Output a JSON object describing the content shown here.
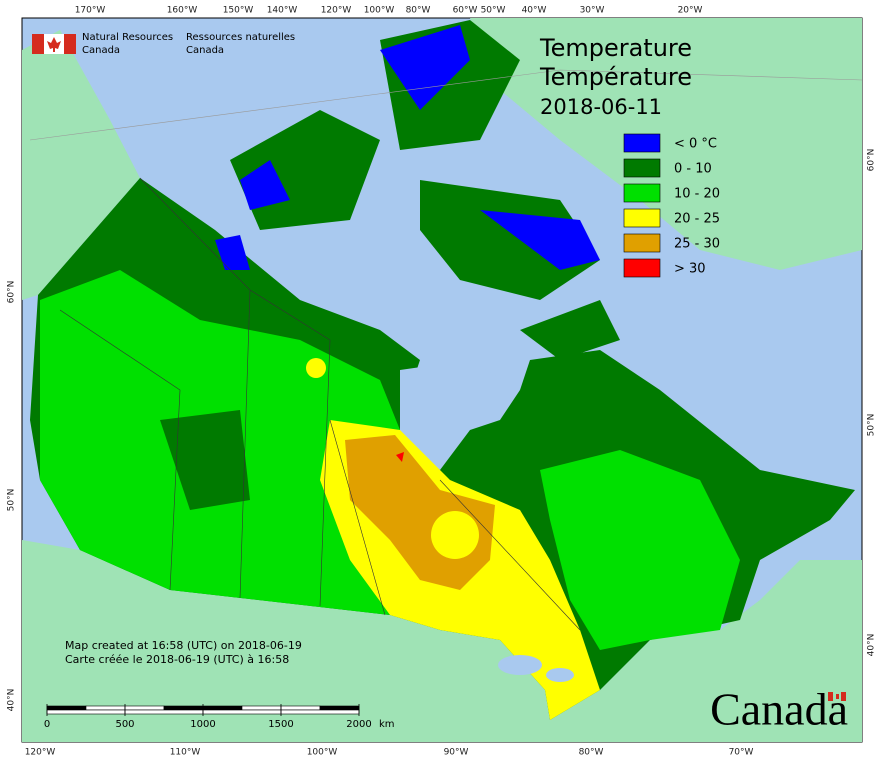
{
  "header": {
    "agency_en": "Natural Resources",
    "country_en": "Canada",
    "agency_fr": "Ressources naturelles",
    "country_fr": "Canada"
  },
  "title": {
    "line1": "Temperature",
    "line2": "Température",
    "date": "2018-06-11"
  },
  "legend": [
    {
      "label": "< 0 °C",
      "color": "#0000ff"
    },
    {
      "label": "0 - 10",
      "color": "#007a00"
    },
    {
      "label": "10 - 20",
      "color": "#00e000"
    },
    {
      "label": "20 - 25",
      "color": "#ffff00"
    },
    {
      "label": "25 - 30",
      "color": "#e0a000"
    },
    {
      "label": "> 30",
      "color": "#ff0000"
    }
  ],
  "graticule": {
    "top": [
      "170°W",
      "160°W",
      "150°W",
      "140°W",
      "120°W",
      "100°W",
      "80°W",
      "60°W",
      "50°W",
      "40°W",
      "30°W",
      "20°W"
    ],
    "bottom": [
      "120°W",
      "110°W",
      "100°W",
      "90°W",
      "80°W",
      "70°W"
    ],
    "left": [
      "60°N",
      "50°N",
      "40°N"
    ],
    "right": [
      "60°N",
      "50°N",
      "40°N"
    ]
  },
  "credit": {
    "en": "Map created at 16:58 (UTC) on 2018-06-19",
    "fr": "Carte créée le 2018-06-19 (UTC) à 16:58"
  },
  "scale": {
    "ticks": [
      0,
      500,
      1000,
      1500,
      2000
    ],
    "unit": "km"
  },
  "wordmark": "Canada"
}
